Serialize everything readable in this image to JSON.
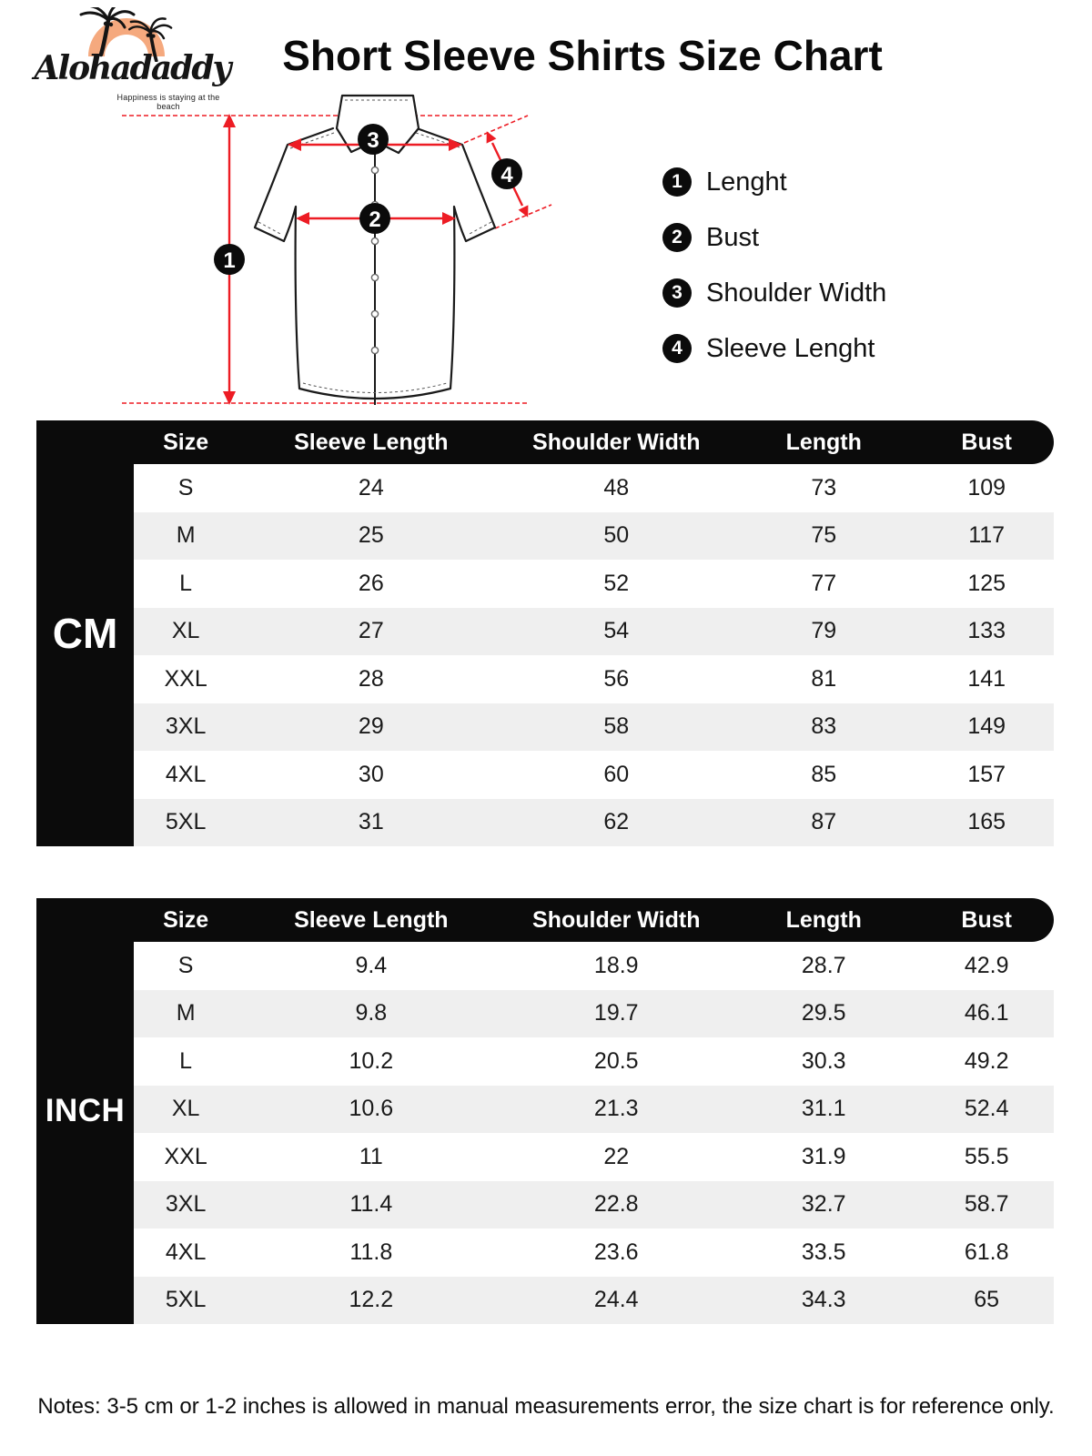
{
  "brand": {
    "name": "Alohadaddy",
    "tagline": "Happiness is staying at the beach"
  },
  "title": "Short Sleeve Shirts Size Chart",
  "diagram": {
    "markers": [
      "1",
      "2",
      "3",
      "4"
    ]
  },
  "legend": [
    {
      "num": "1",
      "label": "Lenght"
    },
    {
      "num": "2",
      "label": "Bust"
    },
    {
      "num": "3",
      "label": "Shoulder Width"
    },
    {
      "num": "4",
      "label": "Sleeve Lenght"
    }
  ],
  "colors": {
    "accent_red": "#ED1C24",
    "logo_orange": "#F5A97E",
    "table_black": "#0B0B0B",
    "row_alt_gray": "#EFEFEF"
  },
  "tables": [
    {
      "unit_label": "CM",
      "columns": [
        "Size",
        "Sleeve Length",
        "Shoulder Width",
        "Length",
        "Bust"
      ],
      "rows": [
        [
          "S",
          "24",
          "48",
          "73",
          "109"
        ],
        [
          "M",
          "25",
          "50",
          "75",
          "117"
        ],
        [
          "L",
          "26",
          "52",
          "77",
          "125"
        ],
        [
          "XL",
          "27",
          "54",
          "79",
          "133"
        ],
        [
          "XXL",
          "28",
          "56",
          "81",
          "141"
        ],
        [
          "3XL",
          "29",
          "58",
          "83",
          "149"
        ],
        [
          "4XL",
          "30",
          "60",
          "85",
          "157"
        ],
        [
          "5XL",
          "31",
          "62",
          "87",
          "165"
        ]
      ]
    },
    {
      "unit_label": "INCH",
      "columns": [
        "Size",
        "Sleeve Length",
        "Shoulder Width",
        "Length",
        "Bust"
      ],
      "rows": [
        [
          "S",
          "9.4",
          "18.9",
          "28.7",
          "42.9"
        ],
        [
          "M",
          "9.8",
          "19.7",
          "29.5",
          "46.1"
        ],
        [
          "L",
          "10.2",
          "20.5",
          "30.3",
          "49.2"
        ],
        [
          "XL",
          "10.6",
          "21.3",
          "31.1",
          "52.4"
        ],
        [
          "XXL",
          "11",
          "22",
          "31.9",
          "55.5"
        ],
        [
          "3XL",
          "11.4",
          "22.8",
          "32.7",
          "58.7"
        ],
        [
          "4XL",
          "11.8",
          "23.6",
          "33.5",
          "61.8"
        ],
        [
          "5XL",
          "12.2",
          "24.4",
          "34.3",
          "65"
        ]
      ]
    }
  ],
  "note": "Notes: 3-5 cm or 1-2 inches is allowed in manual measurements error, the size chart is for reference only."
}
